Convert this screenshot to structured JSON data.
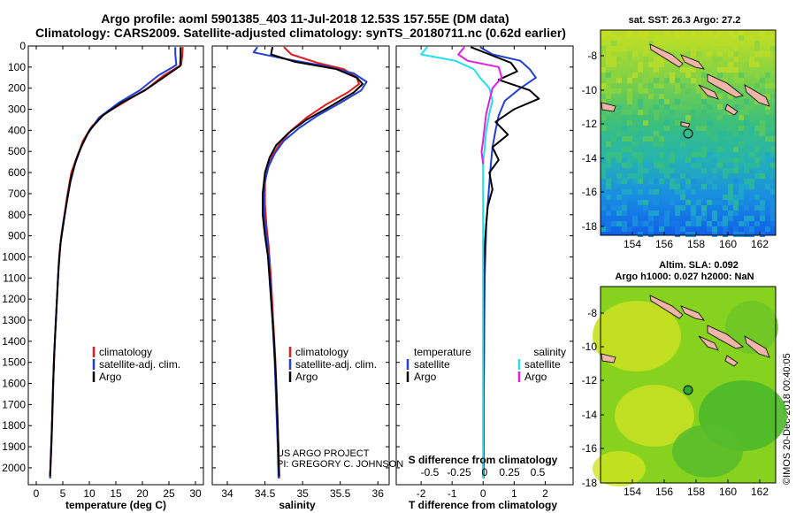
{
  "header": {
    "line1": "Argo profile: aoml 5901385_403 11-Jul-2018 12.53S 157.55E (DM data)",
    "line2": "Climatology: CARS2009. Satellite-adjusted climatology: synTS_20180711.nc (0.62d earlier)"
  },
  "colors": {
    "climatology": "#e41a1c",
    "satellite": "#1f3fd6",
    "argo": "#000000",
    "salinity_satellite": "#22e0f0",
    "salinity_argo": "#e020e0"
  },
  "chart_data": [
    {
      "type": "line",
      "name": "temperature-profile",
      "xlabel": "temperature (deg C)",
      "xlim": [
        -1.5,
        31.5
      ],
      "xticks": [
        0,
        5,
        10,
        15,
        20,
        25,
        30
      ],
      "ylim": [
        2080,
        0
      ],
      "yticks": [
        0,
        100,
        200,
        300,
        400,
        500,
        600,
        700,
        800,
        900,
        1000,
        1100,
        1200,
        1300,
        1400,
        1500,
        1600,
        1700,
        1800,
        1900,
        2000
      ],
      "legend": [
        "climatology",
        "satellite-adj. clim.",
        "Argo"
      ],
      "series": [
        {
          "name": "climatology",
          "color": "#e41a1c",
          "points": [
            [
              27.6,
              5
            ],
            [
              27.5,
              50
            ],
            [
              27.3,
              90
            ],
            [
              24,
              140
            ],
            [
              21,
              200
            ],
            [
              17,
              260
            ],
            [
              13,
              320
            ],
            [
              10.5,
              380
            ],
            [
              8.8,
              450
            ],
            [
              7.6,
              530
            ],
            [
              6.6,
              600
            ],
            [
              5.9,
              700
            ],
            [
              5.3,
              800
            ],
            [
              4.7,
              900
            ],
            [
              4.3,
              1000
            ],
            [
              3.9,
              1200
            ],
            [
              3.5,
              1400
            ],
            [
              3.2,
              1600
            ],
            [
              3.0,
              1800
            ],
            [
              2.7,
              2000
            ],
            [
              2.6,
              2050
            ]
          ]
        },
        {
          "name": "satellite-adj. clim.",
          "color": "#1f3fd6",
          "points": [
            [
              26.2,
              5
            ],
            [
              26.2,
              40
            ],
            [
              26.4,
              90
            ],
            [
              23,
              140
            ],
            [
              19.5,
              210
            ],
            [
              15.5,
              270
            ],
            [
              11.8,
              340
            ],
            [
              9.6,
              420
            ],
            [
              8.3,
              490
            ],
            [
              7.3,
              560
            ],
            [
              6.4,
              650
            ],
            [
              5.7,
              750
            ],
            [
              5.0,
              850
            ],
            [
              4.5,
              950
            ],
            [
              4.1,
              1100
            ],
            [
              3.7,
              1300
            ],
            [
              3.3,
              1500
            ],
            [
              3.1,
              1700
            ],
            [
              2.8,
              1900
            ],
            [
              2.6,
              2050
            ]
          ]
        },
        {
          "name": "Argo",
          "color": "#000000",
          "points": [
            [
              27.2,
              5
            ],
            [
              27.2,
              50
            ],
            [
              27.1,
              95
            ],
            [
              24.5,
              140
            ],
            [
              20.5,
              210
            ],
            [
              16,
              270
            ],
            [
              12.5,
              330
            ],
            [
              10,
              400
            ],
            [
              8.6,
              470
            ],
            [
              7.5,
              540
            ],
            [
              6.5,
              630
            ],
            [
              5.8,
              730
            ],
            [
              5.2,
              830
            ],
            [
              4.6,
              930
            ],
            [
              4.2,
              1050
            ],
            [
              3.8,
              1250
            ],
            [
              3.4,
              1450
            ],
            [
              3.1,
              1650
            ],
            [
              2.9,
              1850
            ],
            [
              2.6,
              2040
            ]
          ]
        }
      ]
    },
    {
      "type": "line",
      "name": "salinity-profile",
      "xlabel": "salinity",
      "xlim": [
        33.8,
        36.15
      ],
      "xticks": [
        34,
        34.5,
        35,
        35.5,
        36
      ],
      "ylim": [
        2080,
        0
      ],
      "legend": [
        "climatology",
        "satellite-adj. clim.",
        "Argo"
      ],
      "series": [
        {
          "name": "climatology",
          "color": "#e41a1c",
          "points": [
            [
              34.75,
              5
            ],
            [
              34.85,
              40
            ],
            [
              35.2,
              80
            ],
            [
              35.55,
              110
            ],
            [
              35.72,
              150
            ],
            [
              35.75,
              180
            ],
            [
              35.6,
              220
            ],
            [
              35.3,
              280
            ],
            [
              35.05,
              340
            ],
            [
              34.85,
              400
            ],
            [
              34.7,
              460
            ],
            [
              34.6,
              520
            ],
            [
              34.53,
              580
            ],
            [
              34.5,
              650
            ],
            [
              34.5,
              750
            ],
            [
              34.52,
              850
            ],
            [
              34.55,
              950
            ],
            [
              34.58,
              1100
            ],
            [
              34.61,
              1300
            ],
            [
              34.64,
              1500
            ],
            [
              34.66,
              1700
            ],
            [
              34.68,
              1900
            ],
            [
              34.69,
              2050
            ]
          ]
        },
        {
          "name": "satellite-adj. clim.",
          "color": "#1f3fd6",
          "points": [
            [
              34.4,
              5
            ],
            [
              34.35,
              30
            ],
            [
              34.75,
              60
            ],
            [
              35.3,
              95
            ],
            [
              35.68,
              130
            ],
            [
              35.85,
              170
            ],
            [
              35.78,
              210
            ],
            [
              35.5,
              270
            ],
            [
              35.2,
              330
            ],
            [
              34.95,
              390
            ],
            [
              34.75,
              450
            ],
            [
              34.63,
              510
            ],
            [
              34.55,
              570
            ],
            [
              34.5,
              640
            ],
            [
              34.48,
              740
            ],
            [
              34.5,
              840
            ],
            [
              34.54,
              950
            ],
            [
              34.57,
              1100
            ],
            [
              34.6,
              1300
            ],
            [
              34.63,
              1500
            ],
            [
              34.65,
              1700
            ],
            [
              34.67,
              1900
            ],
            [
              34.68,
              2050
            ]
          ]
        },
        {
          "name": "Argo",
          "color": "#000000",
          "points": [
            [
              34.6,
              5
            ],
            [
              34.58,
              40
            ],
            [
              34.9,
              75
            ],
            [
              35.45,
              110
            ],
            [
              35.72,
              150
            ],
            [
              35.8,
              180
            ],
            [
              35.68,
              220
            ],
            [
              35.35,
              290
            ],
            [
              35.05,
              350
            ],
            [
              34.82,
              410
            ],
            [
              34.65,
              470
            ],
            [
              34.56,
              530
            ],
            [
              34.5,
              600
            ],
            [
              34.47,
              700
            ],
            [
              34.47,
              800
            ],
            [
              34.5,
              900
            ],
            [
              34.54,
              1000
            ],
            [
              34.58,
              1200
            ],
            [
              34.62,
              1400
            ],
            [
              34.65,
              1600
            ],
            [
              34.67,
              1800
            ],
            [
              34.69,
              2040
            ]
          ]
        }
      ]
    },
    {
      "type": "line",
      "name": "difference-profile",
      "xlabel": "T difference from climatology",
      "xlabel2": "S difference from climatology",
      "xlim": [
        -2.8,
        2.9
      ],
      "xticks": [
        -2,
        -1,
        0,
        1,
        2
      ],
      "xticks2": [
        "-0.5",
        "-0.25",
        "0",
        "0.25",
        "0.5"
      ],
      "ylim": [
        2080,
        0
      ],
      "legend_left_title": "temperature",
      "legend_right_title": "salinity",
      "legend_left": [
        "satellite",
        "Argo"
      ],
      "legend_right": [
        "satellite",
        "Argo"
      ],
      "series": [
        {
          "name": "temperature satellite",
          "color": "#1f3fd6",
          "points": [
            [
              -0.1,
              5
            ],
            [
              0.3,
              40
            ],
            [
              1.2,
              70
            ],
            [
              1.5,
              110
            ],
            [
              1.7,
              150
            ],
            [
              1.2,
              200
            ],
            [
              0.7,
              260
            ],
            [
              0.5,
              330
            ],
            [
              0.4,
              400
            ],
            [
              0.3,
              480
            ],
            [
              0.25,
              560
            ],
            [
              0.2,
              650
            ],
            [
              0.15,
              750
            ],
            [
              0.1,
              850
            ],
            [
              0.08,
              950
            ],
            [
              0.05,
              1100
            ],
            [
              0.04,
              1300
            ],
            [
              0.03,
              1500
            ],
            [
              0.02,
              1700
            ],
            [
              0.02,
              1900
            ],
            [
              0.02,
              2050
            ]
          ]
        },
        {
          "name": "temperature Argo",
          "color": "#000000",
          "points": [
            [
              -0.4,
              5
            ],
            [
              0.2,
              40
            ],
            [
              0.9,
              80
            ],
            [
              1.1,
              120
            ],
            [
              0.5,
              160
            ],
            [
              1.5,
              210
            ],
            [
              1.8,
              250
            ],
            [
              1.0,
              300
            ],
            [
              0.4,
              360
            ],
            [
              0.8,
              420
            ],
            [
              0.3,
              480
            ],
            [
              0.5,
              540
            ],
            [
              0.2,
              600
            ],
            [
              0.3,
              680
            ],
            [
              0.15,
              760
            ],
            [
              0.1,
              840
            ],
            [
              0.05,
              950
            ],
            [
              0.03,
              1100
            ],
            [
              0.02,
              1300
            ],
            [
              0.02,
              1500
            ],
            [
              0.01,
              1700
            ],
            [
              0.01,
              1900
            ],
            [
              0.0,
              2040
            ]
          ]
        },
        {
          "name": "salinity satellite",
          "color": "#22e0f0",
          "points": [
            [
              -1.8,
              5
            ],
            [
              -2.0,
              40
            ],
            [
              -0.9,
              70
            ],
            [
              -0.3,
              110
            ],
            [
              -0.1,
              150
            ],
            [
              0.2,
              200
            ],
            [
              0.3,
              260
            ],
            [
              0.2,
              320
            ],
            [
              0.1,
              400
            ],
            [
              0.05,
              480
            ],
            [
              0.0,
              560
            ],
            [
              0.0,
              700
            ],
            [
              0.0,
              900
            ],
            [
              0.0,
              1100
            ],
            [
              0.0,
              1400
            ],
            [
              0.0,
              1700
            ],
            [
              0.0,
              2050
            ]
          ]
        },
        {
          "name": "salinity Argo",
          "color": "#e020e0",
          "points": [
            [
              -0.6,
              5
            ],
            [
              -0.8,
              40
            ],
            [
              -0.5,
              70
            ],
            [
              0.5,
              100
            ],
            [
              0.6,
              150
            ],
            [
              0.3,
              200
            ],
            [
              0.2,
              260
            ],
            [
              0.1,
              320
            ],
            [
              0.05,
              380
            ],
            [
              0.0,
              450
            ],
            [
              -0.05,
              500
            ],
            [
              0.0,
              560
            ]
          ]
        }
      ]
    }
  ],
  "maps": {
    "sst": {
      "title": "sat. SST: 26.3 Argo: 27.2",
      "xticks": [
        "154",
        "156",
        "158",
        "160",
        "162"
      ],
      "yticks": [
        "-8",
        "-10",
        "-12",
        "-14",
        "-16",
        "-18"
      ]
    },
    "sla": {
      "title1": "Altim. SLA: 0.092",
      "title2": "Argo h1000: 0.027 h2000: NaN",
      "xticks": [
        "154",
        "156",
        "158",
        "160",
        "162"
      ],
      "yticks": [
        "-8",
        "-10",
        "-12",
        "-14",
        "-16",
        "-18"
      ]
    }
  },
  "credits": {
    "project": "US ARGO PROJECT",
    "pi": "PI: GREGORY C. JOHNSON",
    "imos": "©IMOS 20-Dec-2018 00:40:05"
  }
}
